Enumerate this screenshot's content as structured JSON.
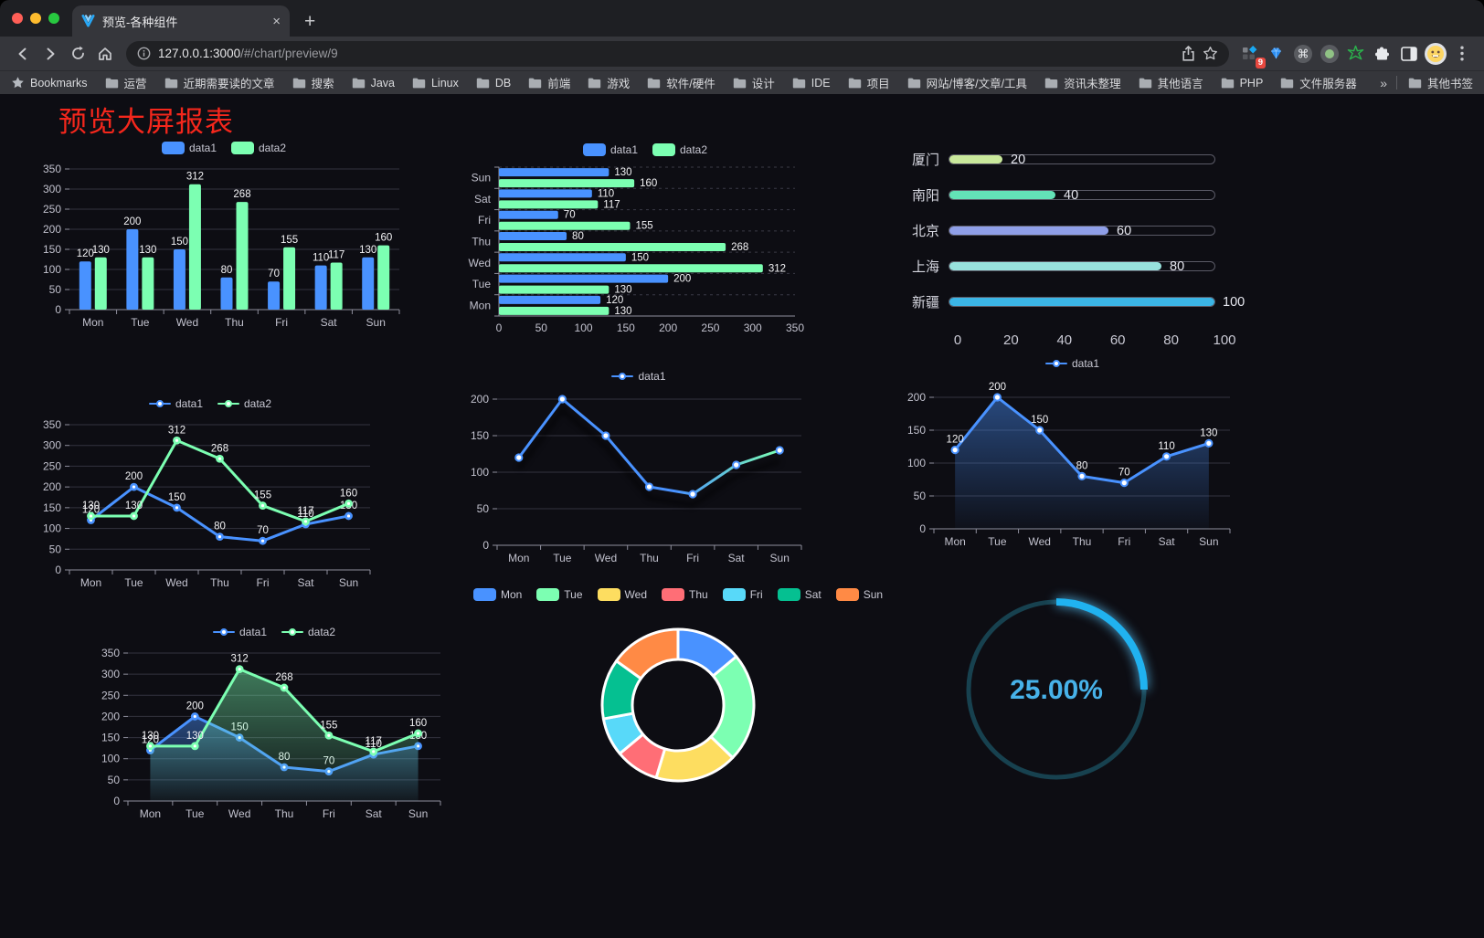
{
  "browser": {
    "tab": {
      "title": "预览-各种组件",
      "close_glyph": "×",
      "new_tab_glyph": "+"
    },
    "url_host": "127.0.0.1:3000",
    "url_path": "/#/chart/preview/9",
    "extension_badge": "9",
    "bookmarks_label": "Bookmarks",
    "bookmarks": [
      "运营",
      "近期需要读的文章",
      "搜索",
      "Java",
      "Linux",
      "DB",
      "前端",
      "游戏",
      "软件/硬件",
      "设计",
      "IDE",
      "项目",
      "网站/博客/文章/工具",
      "资讯未整理",
      "其他语言",
      "PHP",
      "文件服务器"
    ],
    "bookmarks_overflow_glyph": "»",
    "other_bookmarks_label": "其他书签"
  },
  "page": {
    "title": "预览大屏报表",
    "title_color": "#f4271c",
    "background": "#0d0d13"
  },
  "palette": {
    "data1": "#4992ff",
    "data2": "#7cffb2"
  },
  "chart_data": [
    {
      "type": "bar",
      "categories": [
        "Mon",
        "Tue",
        "Wed",
        "Thu",
        "Fri",
        "Sat",
        "Sun"
      ],
      "series": [
        {
          "name": "data1",
          "color": "#4992ff",
          "values": [
            120,
            200,
            150,
            80,
            70,
            110,
            130
          ]
        },
        {
          "name": "data2",
          "color": "#7cffb2",
          "values": [
            130,
            130,
            312,
            268,
            155,
            117,
            160
          ]
        }
      ],
      "ylim": [
        0,
        350
      ],
      "ystep": 50,
      "show_labels": true,
      "legend_position": "top",
      "grid": true
    },
    {
      "type": "hbar",
      "categories": [
        "Mon",
        "Tue",
        "Wed",
        "Thu",
        "Fri",
        "Sat",
        "Sun"
      ],
      "series": [
        {
          "name": "data1",
          "color": "#4992ff",
          "values": [
            120,
            200,
            150,
            80,
            70,
            110,
            130
          ]
        },
        {
          "name": "data2",
          "color": "#7cffb2",
          "values": [
            130,
            130,
            312,
            268,
            155,
            117,
            160
          ]
        }
      ],
      "xlim": [
        0,
        350
      ],
      "xstep": 50,
      "show_labels": true,
      "legend_position": "top"
    },
    {
      "type": "progress",
      "max": 100,
      "ticks": [
        0,
        20,
        40,
        60,
        80,
        100
      ],
      "items": [
        {
          "label": "厦门",
          "value": 20,
          "color": "#c9e89b"
        },
        {
          "label": "南阳",
          "value": 40,
          "color": "#63e2b7"
        },
        {
          "label": "北京",
          "value": 60,
          "color": "#8f9fe8"
        },
        {
          "label": "上海",
          "value": 80,
          "color": "#98e2dd"
        },
        {
          "label": "新疆",
          "value": 100,
          "color": "#3bb5e6"
        }
      ]
    },
    {
      "type": "line",
      "categories": [
        "Mon",
        "Tue",
        "Wed",
        "Thu",
        "Fri",
        "Sat",
        "Sun"
      ],
      "series": [
        {
          "name": "data1",
          "color": "#4992ff",
          "values": [
            120,
            200,
            150,
            80,
            70,
            110,
            130
          ]
        },
        {
          "name": "data2",
          "color": "#7cffb2",
          "values": [
            130,
            130,
            312,
            268,
            155,
            117,
            160
          ]
        }
      ],
      "ylim": [
        0,
        350
      ],
      "ystep": 50,
      "show_labels": true,
      "marker": "solid",
      "legend_position": "top"
    },
    {
      "type": "line",
      "categories": [
        "Mon",
        "Tue",
        "Wed",
        "Thu",
        "Fri",
        "Sat",
        "Sun"
      ],
      "series": [
        {
          "name": "data1",
          "color": "#4992ff",
          "color2": "#7cffb2",
          "values": [
            120,
            200,
            150,
            80,
            70,
            110,
            130
          ]
        }
      ],
      "ylim": [
        0,
        200
      ],
      "ystep": 50,
      "show_labels": false,
      "marker": "hollow",
      "gradient_line": true,
      "shadow": true,
      "legend_position": "top"
    },
    {
      "type": "area",
      "categories": [
        "Mon",
        "Tue",
        "Wed",
        "Thu",
        "Fri",
        "Sat",
        "Sun"
      ],
      "series": [
        {
          "name": "data1",
          "color": "#4992ff",
          "values": [
            120,
            200,
            150,
            80,
            70,
            110,
            130
          ]
        }
      ],
      "ylim": [
        0,
        200
      ],
      "ystep": 50,
      "show_labels": true,
      "marker": "hollow",
      "area": true,
      "legend_position": "top"
    },
    {
      "type": "area",
      "categories": [
        "Mon",
        "Tue",
        "Wed",
        "Thu",
        "Fri",
        "Sat",
        "Sun"
      ],
      "series": [
        {
          "name": "data1",
          "color": "#4992ff",
          "values": [
            120,
            200,
            150,
            80,
            70,
            110,
            130
          ]
        },
        {
          "name": "data2",
          "color": "#7cffb2",
          "values": [
            130,
            130,
            312,
            268,
            155,
            117,
            160
          ]
        }
      ],
      "ylim": [
        0,
        350
      ],
      "ystep": 50,
      "show_labels": true,
      "marker": "solid",
      "area": true,
      "legend_position": "top"
    },
    {
      "type": "donut",
      "categories": [
        "Mon",
        "Tue",
        "Wed",
        "Thu",
        "Fri",
        "Sat",
        "Sun"
      ],
      "values": [
        120,
        200,
        150,
        80,
        70,
        110,
        130
      ],
      "colors": [
        "#4992ff",
        "#7cffb2",
        "#fddd60",
        "#ff6e76",
        "#58d9f9",
        "#05c091",
        "#ff8a45"
      ],
      "legend_position": "top"
    },
    {
      "type": "gauge",
      "value_text": "25.00%",
      "percent": 25,
      "color": "#20b2f0",
      "track_color": "#17414f",
      "text_color": "#47b2e9"
    }
  ]
}
